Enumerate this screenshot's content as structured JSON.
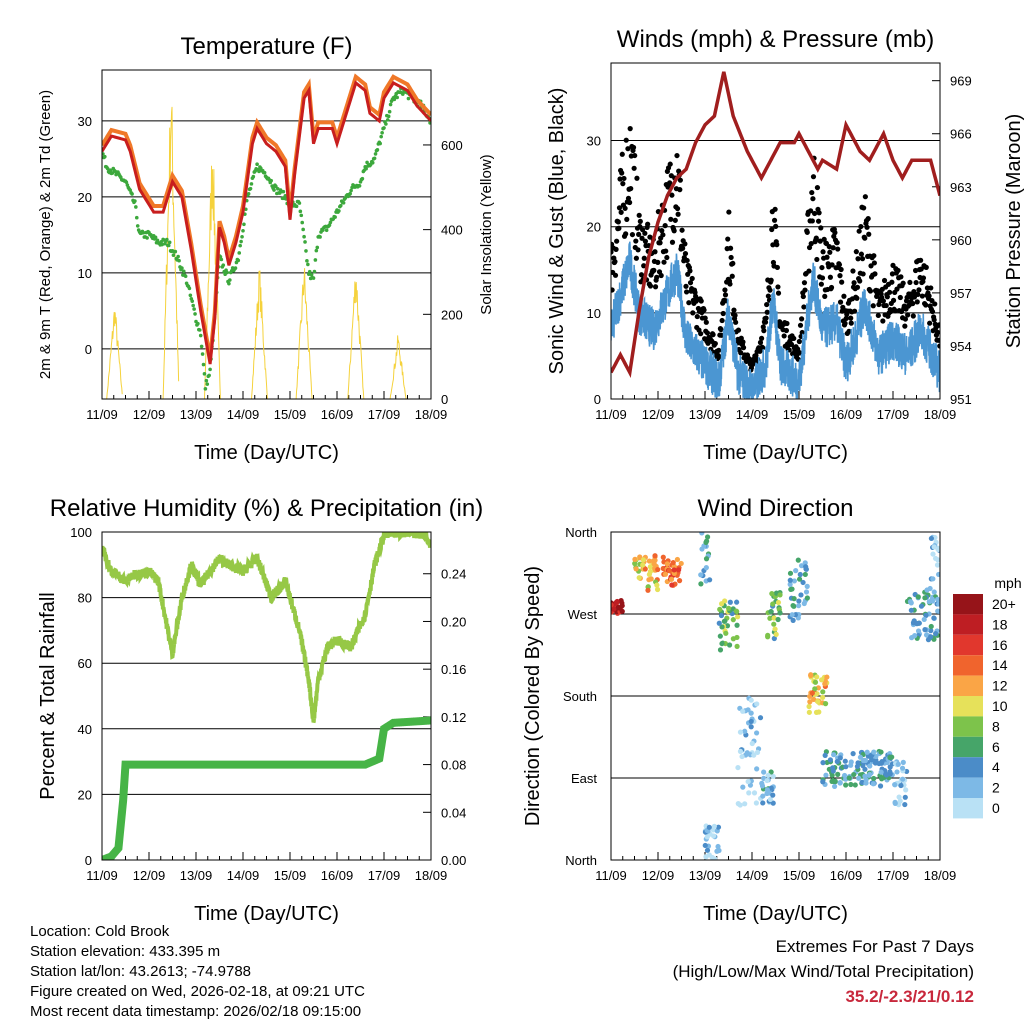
{
  "chart_data": [
    {
      "type": "line",
      "title": "Temperature (F)",
      "xlabel": "Time (Day/UTC)",
      "ylabel": "2m & 9m T (Red, Orange) & 2m Td (Green)",
      "ylabel_right": "Solar Insolation (Yellow)",
      "ylim": [
        -6.6,
        36.7
      ],
      "ylim_right": [
        0,
        777
      ],
      "yticks": [
        0,
        10,
        20,
        30
      ],
      "yticks_right": [
        0,
        200,
        400,
        600
      ],
      "xticks": [
        "11/09",
        "12/09",
        "13/09",
        "14/09",
        "15/09",
        "16/09",
        "17/09",
        "18/09"
      ],
      "series": [
        {
          "name": "2m T",
          "color": "#c81e1e",
          "points": [
            [
              0,
              26
            ],
            [
              0.2,
              28
            ],
            [
              0.5,
              27.5
            ],
            [
              0.6,
              26
            ],
            [
              0.8,
              21
            ],
            [
              1,
              19
            ],
            [
              1.1,
              18
            ],
            [
              1.3,
              18
            ],
            [
              1.5,
              22
            ],
            [
              1.7,
              20
            ],
            [
              1.9,
              13
            ],
            [
              2.1,
              5
            ],
            [
              2.3,
              -2
            ],
            [
              2.4,
              4
            ],
            [
              2.5,
              16
            ],
            [
              2.6,
              14
            ],
            [
              2.7,
              11
            ],
            [
              2.85,
              14
            ],
            [
              3,
              18
            ],
            [
              3.2,
              27
            ],
            [
              3.3,
              29
            ],
            [
              3.5,
              27
            ],
            [
              3.7,
              26
            ],
            [
              3.9,
              24
            ],
            [
              4,
              17
            ],
            [
              4.1,
              23
            ],
            [
              4.3,
              33
            ],
            [
              4.4,
              34
            ],
            [
              4.5,
              27
            ],
            [
              4.6,
              29
            ],
            [
              4.9,
              29
            ],
            [
              5,
              27
            ],
            [
              5.2,
              31
            ],
            [
              5.4,
              35
            ],
            [
              5.6,
              34
            ],
            [
              5.7,
              31
            ],
            [
              5.9,
              30
            ],
            [
              6,
              33
            ],
            [
              6.2,
              35
            ],
            [
              6.5,
              34
            ],
            [
              6.7,
              32
            ],
            [
              7,
              30
            ]
          ]
        },
        {
          "name": "9m T",
          "color": "#f07828",
          "offset": 0.8
        },
        {
          "name": "2m Td",
          "color": "#3ca83c",
          "points": [
            [
              0,
              26
            ],
            [
              0.1,
              24
            ],
            [
              0.3,
              23
            ],
            [
              0.5,
              22
            ],
            [
              0.7,
              19
            ],
            [
              0.8,
              15
            ],
            [
              1,
              15
            ],
            [
              1.2,
              14
            ],
            [
              1.4,
              14
            ],
            [
              1.6,
              12
            ],
            [
              1.8,
              9
            ],
            [
              2,
              4
            ],
            [
              2.1,
              2
            ],
            [
              2.2,
              -5
            ],
            [
              2.3,
              -3
            ],
            [
              2.5,
              12
            ],
            [
              2.7,
              9
            ],
            [
              2.9,
              12
            ],
            [
              3.1,
              20
            ],
            [
              3.3,
              24
            ],
            [
              3.5,
              23
            ],
            [
              3.7,
              21
            ],
            [
              3.9,
              20
            ],
            [
              4,
              19
            ],
            [
              4.2,
              19
            ],
            [
              4.4,
              10
            ],
            [
              4.5,
              9
            ],
            [
              4.6,
              15
            ],
            [
              4.8,
              16
            ],
            [
              5,
              18
            ],
            [
              5.3,
              21
            ],
            [
              5.5,
              22
            ],
            [
              5.6,
              24
            ],
            [
              5.8,
              25
            ],
            [
              6,
              29
            ],
            [
              6.2,
              33
            ],
            [
              6.4,
              34
            ],
            [
              6.6,
              33
            ],
            [
              6.8,
              32
            ],
            [
              7,
              30
            ]
          ]
        },
        {
          "name": "Solar",
          "color": "#f5d23c",
          "peaks": [
            [
              0.27,
              240
            ],
            [
              1.47,
              800
            ],
            [
              2.35,
              660
            ],
            [
              3.35,
              330
            ],
            [
              4.3,
              340
            ],
            [
              5.4,
              340
            ],
            [
              6.3,
              160
            ]
          ]
        }
      ]
    },
    {
      "type": "scatter",
      "title": "Winds (mph) & Pressure (mb)",
      "xlabel": "Time (Day/UTC)",
      "ylabel": "Sonic Wind & Gust (Blue, Black)",
      "ylabel_right": "Station Pressure (Maroon)",
      "ylim": [
        0,
        39
      ],
      "ylim_right": [
        951,
        970
      ],
      "yticks": [
        0,
        10,
        20,
        30
      ],
      "yticks_right": [
        951,
        954,
        957,
        960,
        963,
        966,
        969
      ],
      "xticks": [
        "11/09",
        "12/09",
        "13/09",
        "14/09",
        "15/09",
        "16/09",
        "17/09",
        "18/09"
      ],
      "wind": [
        [
          0,
          8
        ],
        [
          0.4,
          16
        ],
        [
          0.6,
          10
        ],
        [
          0.9,
          8
        ],
        [
          1.4,
          15
        ],
        [
          1.6,
          7
        ],
        [
          2,
          4
        ],
        [
          2.3,
          2
        ],
        [
          2.5,
          10
        ],
        [
          2.7,
          3
        ],
        [
          3,
          1
        ],
        [
          3.3,
          4
        ],
        [
          3.45,
          12
        ],
        [
          3.6,
          4
        ],
        [
          4,
          2
        ],
        [
          4.3,
          14
        ],
        [
          4.5,
          8
        ],
        [
          4.8,
          9
        ],
        [
          5,
          4
        ],
        [
          5.2,
          7
        ],
        [
          5.4,
          11
        ],
        [
          5.7,
          5
        ],
        [
          6,
          7
        ],
        [
          6.3,
          5
        ],
        [
          6.6,
          8
        ],
        [
          7,
          3
        ]
      ],
      "pressure": [
        [
          0,
          952.5
        ],
        [
          0.2,
          953.5
        ],
        [
          0.4,
          952.5
        ],
        [
          0.6,
          956
        ],
        [
          0.8,
          959
        ],
        [
          1,
          961
        ],
        [
          1.2,
          962.5
        ],
        [
          1.4,
          963.5
        ],
        [
          1.6,
          964
        ],
        [
          1.8,
          965.5
        ],
        [
          2,
          966.5
        ],
        [
          2.2,
          967
        ],
        [
          2.4,
          969.5
        ],
        [
          2.6,
          967
        ],
        [
          2.9,
          965
        ],
        [
          3.2,
          963.5
        ],
        [
          3.4,
          964.5
        ],
        [
          3.6,
          965.5
        ],
        [
          3.9,
          965.5
        ],
        [
          4,
          966
        ],
        [
          4.2,
          965
        ],
        [
          4.4,
          964
        ],
        [
          4.5,
          964.5
        ],
        [
          4.8,
          964
        ],
        [
          5,
          966.5
        ],
        [
          5.3,
          965
        ],
        [
          5.5,
          964.5
        ],
        [
          5.8,
          966
        ],
        [
          6,
          964.5
        ],
        [
          6.2,
          963.5
        ],
        [
          6.4,
          964.5
        ],
        [
          6.6,
          964.5
        ],
        [
          6.8,
          964.5
        ],
        [
          7,
          962.5
        ]
      ],
      "colors": {
        "wind": "#4b96d2",
        "gust": "#000000",
        "pressure": "#a01e1e"
      }
    },
    {
      "type": "line",
      "title": "Relative Humidity (%) & Precipitation (in)",
      "xlabel": "Time (Day/UTC)",
      "ylabel": "Percent & Total Rainfall",
      "ylim": [
        0,
        100
      ],
      "ylim_right": [
        0,
        0.275
      ],
      "yticks": [
        0,
        20,
        40,
        60,
        80,
        100
      ],
      "yticks_right": [
        "0.00",
        "0.04",
        "0.08",
        "0.12",
        "0.16",
        "0.20",
        "0.24"
      ],
      "xticks": [
        "11/09",
        "12/09",
        "13/09",
        "14/09",
        "15/09",
        "16/09",
        "17/09",
        "18/09"
      ],
      "rh": [
        [
          0,
          95
        ],
        [
          0.2,
          88
        ],
        [
          0.5,
          85
        ],
        [
          0.7,
          87
        ],
        [
          1,
          88
        ],
        [
          1.2,
          85
        ],
        [
          1.4,
          70
        ],
        [
          1.5,
          63
        ],
        [
          1.7,
          80
        ],
        [
          1.9,
          90
        ],
        [
          2.1,
          84
        ],
        [
          2.3,
          88
        ],
        [
          2.5,
          92
        ],
        [
          2.7,
          90
        ],
        [
          3,
          88
        ],
        [
          3.3,
          92
        ],
        [
          3.6,
          80
        ],
        [
          3.9,
          85
        ],
        [
          4.2,
          70
        ],
        [
          4.4,
          55
        ],
        [
          4.5,
          42
        ],
        [
          4.6,
          55
        ],
        [
          4.8,
          65
        ],
        [
          5,
          67
        ],
        [
          5.3,
          65
        ],
        [
          5.6,
          75
        ],
        [
          5.8,
          90
        ],
        [
          6,
          99
        ],
        [
          6.5,
          100
        ],
        [
          6.9,
          99
        ],
        [
          7,
          96
        ]
      ],
      "precip": [
        [
          0,
          0
        ],
        [
          0.2,
          0.003
        ],
        [
          0.35,
          0.01
        ],
        [
          0.45,
          0.05
        ],
        [
          0.5,
          0.08
        ],
        [
          5.6,
          0.08
        ],
        [
          5.9,
          0.085
        ],
        [
          6,
          0.11
        ],
        [
          6.2,
          0.115
        ],
        [
          7,
          0.117
        ]
      ],
      "colors": {
        "rh": "#96c846",
        "precip": "#46b446"
      }
    },
    {
      "type": "scatter",
      "title": "Wind Direction",
      "xlabel": "Time (Day/UTC)",
      "ylabel": "Direction (Colored By Speed)",
      "ylim": [
        0,
        360
      ],
      "yticks": [
        "North",
        "East",
        "South",
        "West",
        "North"
      ],
      "xticks": [
        "11/09",
        "12/09",
        "13/09",
        "14/09",
        "15/09",
        "16/09",
        "17/09",
        "18/09"
      ],
      "segments": [
        [
          0,
          0.25,
          270,
          285,
          20
        ],
        [
          0.5,
          1,
          295,
          335,
          12
        ],
        [
          1.1,
          1.5,
          300,
          335,
          15
        ],
        [
          1.9,
          2.1,
          300,
          360,
          4
        ],
        [
          2,
          2.3,
          0,
          40,
          2
        ],
        [
          2.3,
          2.7,
          230,
          285,
          8
        ],
        [
          2.7,
          3.2,
          60,
          180,
          2
        ],
        [
          3.2,
          3.5,
          60,
          100,
          4
        ],
        [
          3.3,
          3.6,
          240,
          300,
          8
        ],
        [
          3.8,
          4.2,
          260,
          330,
          5
        ],
        [
          4.2,
          4.6,
          160,
          205,
          12
        ],
        [
          4.5,
          6,
          80,
          120,
          5
        ],
        [
          6,
          6.3,
          60,
          110,
          2
        ],
        [
          6.3,
          7,
          240,
          300,
          5
        ],
        [
          6.8,
          7,
          300,
          360,
          3
        ]
      ],
      "legend": {
        "title": "mph",
        "labels": [
          "20+",
          "18",
          "16",
          "14",
          "12",
          "10",
          "8",
          "6",
          "4",
          "2",
          "0"
        ],
        "colors": [
          "#961419",
          "#be1e23",
          "#e1372d",
          "#f0642d",
          "#faa546",
          "#e6e15a",
          "#7dc34b",
          "#46a569",
          "#4b8cc8",
          "#7db9e6",
          "#b9e1f5"
        ]
      }
    }
  ],
  "info": {
    "location": "Location: Cold Brook",
    "elevation": "Station elevation: 433.395 m",
    "latlon": "Station lat/lon: 43.2613; -74.9788",
    "created": "Figure created on Wed, 2026-02-18, at 09:21 UTC",
    "recent": "Most recent data timestamp: 2026/02/18 09:15:00"
  },
  "extremes": {
    "title": "Extremes For Past 7 Days",
    "subtitle": "(High/Low/Max Wind/Total Precipitation)",
    "values": "35.2/-2.3/21/0.12",
    "color": "#c8283c"
  }
}
